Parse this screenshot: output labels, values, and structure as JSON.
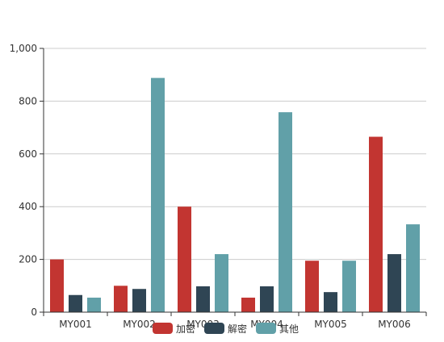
{
  "chart_data": {
    "type": "bar",
    "categories": [
      "MY001",
      "MY002",
      "MY003",
      "MY004",
      "MY005",
      "MY006"
    ],
    "series": [
      {
        "name": "加密",
        "color": "#c23531",
        "values": [
          200,
          100,
          400,
          55,
          195,
          665
        ]
      },
      {
        "name": "解密",
        "color": "#2f4554",
        "values": [
          65,
          88,
          98,
          98,
          76,
          220
        ]
      },
      {
        "name": "其他",
        "color": "#61a0a8",
        "values": [
          55,
          888,
          220,
          758,
          195,
          333
        ]
      }
    ],
    "ylim": [
      0,
      1000
    ],
    "yticks": [
      "0",
      "200",
      "400",
      "600",
      "800",
      "1,000"
    ],
    "grid": true,
    "legend": "bottom-center"
  }
}
